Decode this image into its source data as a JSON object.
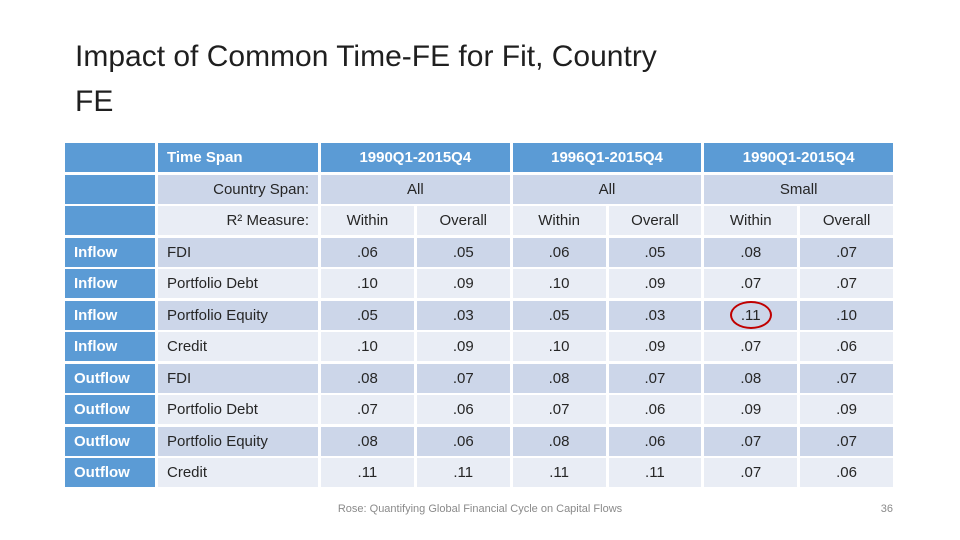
{
  "slide": {
    "title": "Impact of Common Time-FE for Fit, Country\nFE",
    "footer": "Rose: Quantifying Global Financial Cycle on Capital Flows",
    "page_number": "36"
  },
  "colors": {
    "header_blue": "#5B9BD5",
    "band_dark": "#CCD6E9",
    "band_light": "#E9EDF5",
    "highlight_red": "#C00000"
  },
  "table": {
    "time_span_label": "Time Span",
    "country_span_label": "Country Span:",
    "r2_label": "R² Measure:",
    "groups": [
      {
        "time_span": "1990Q1-2015Q4",
        "country_span": "All"
      },
      {
        "time_span": "1996Q1-2015Q4",
        "country_span": "All"
      },
      {
        "time_span": "1990Q1-2015Q4",
        "country_span": "Small"
      }
    ],
    "measure_headers": [
      "Within",
      "Overall",
      "Within",
      "Overall",
      "Within",
      "Overall"
    ],
    "rows": [
      {
        "direction": "Inflow",
        "type": "FDI",
        "values": [
          ".06",
          ".05",
          ".06",
          ".05",
          ".08",
          ".07"
        ]
      },
      {
        "direction": "Inflow",
        "type": "Portfolio Debt",
        "values": [
          ".10",
          ".09",
          ".10",
          ".09",
          ".07",
          ".07"
        ]
      },
      {
        "direction": "Inflow",
        "type": "Portfolio Equity",
        "values": [
          ".05",
          ".03",
          ".05",
          ".03",
          ".11",
          ".10"
        ],
        "highlight": 4
      },
      {
        "direction": "Inflow",
        "type": "Credit",
        "values": [
          ".10",
          ".09",
          ".10",
          ".09",
          ".07",
          ".06"
        ]
      },
      {
        "direction": "Outflow",
        "type": "FDI",
        "values": [
          ".08",
          ".07",
          ".08",
          ".07",
          ".08",
          ".07"
        ]
      },
      {
        "direction": "Outflow",
        "type": "Portfolio Debt",
        "values": [
          ".07",
          ".06",
          ".07",
          ".06",
          ".09",
          ".09"
        ]
      },
      {
        "direction": "Outflow",
        "type": "Portfolio Equity",
        "values": [
          ".08",
          ".06",
          ".08",
          ".06",
          ".07",
          ".07"
        ]
      },
      {
        "direction": "Outflow",
        "type": "Credit",
        "values": [
          ".11",
          ".11",
          ".11",
          ".11",
          ".07",
          ".06"
        ]
      }
    ]
  }
}
